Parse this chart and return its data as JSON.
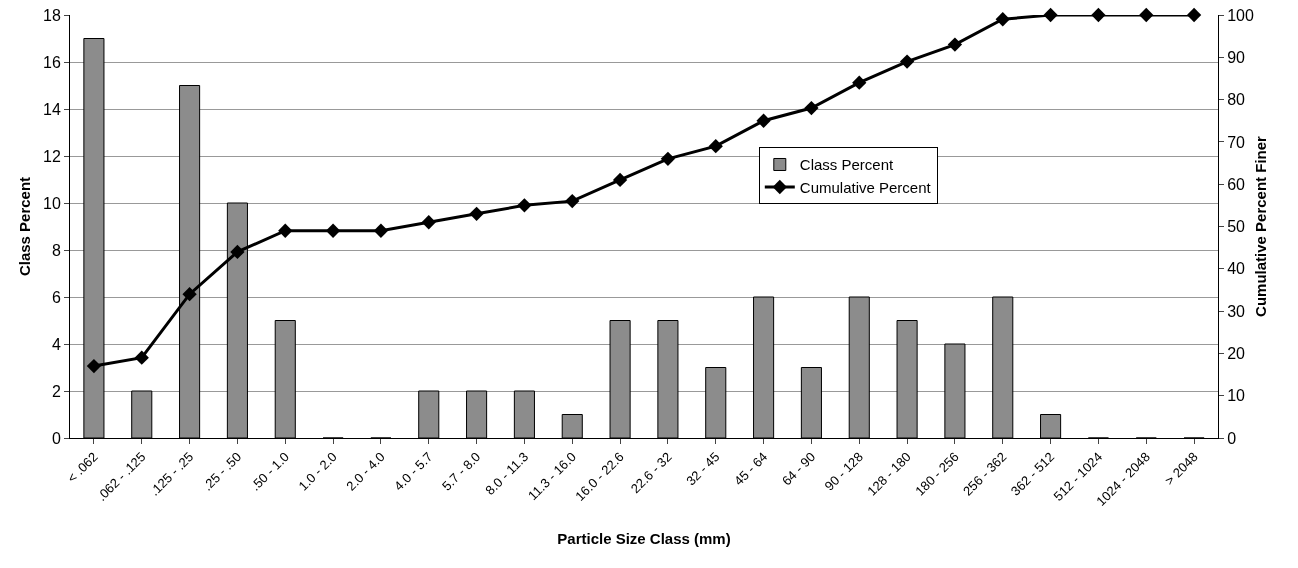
{
  "chart_data": {
    "type": "bar",
    "xlabel": "Particle Size Class (mm)",
    "ylabel": "Class Percent",
    "y2label": "Cumulative Percent Finer",
    "categories": [
      "< .062",
      ".062 - .125",
      ".125 - .25",
      ".25 - .50",
      ".50 - 1.0",
      "1.0 - 2.0",
      "2.0 - 4.0",
      "4.0 - 5.7",
      "5.7 - 8.0",
      "8.0 - 11.3",
      "11.3 - 16.0",
      "16.0 - 22.6",
      "22.6 - 32",
      "32 - 45",
      "45 - 64",
      "64 - 90",
      "90 - 128",
      "128 - 180",
      "180 - 256",
      "256 - 362",
      "362 - 512",
      "512 - 1024",
      "1024 - 2048",
      "> 2048"
    ],
    "series": [
      {
        "name": "Class Percent",
        "color": "#8c8c8c",
        "values": [
          17,
          2,
          15,
          10,
          5,
          0,
          0,
          2,
          2,
          2,
          1,
          5,
          5,
          3,
          6,
          3,
          6,
          5,
          4,
          6,
          1,
          0,
          0,
          0
        ]
      },
      {
        "name": "Cumulative Percent",
        "type": "line",
        "axis": "y2",
        "color": "#000000",
        "marker": "diamond",
        "values": [
          17,
          19,
          34,
          44,
          49,
          49,
          49,
          51,
          53,
          55,
          56,
          61,
          66,
          69,
          75,
          78,
          84,
          89,
          93,
          99,
          100,
          100,
          100,
          100
        ]
      }
    ],
    "ylim": [
      0,
      18
    ],
    "yticks": [
      0,
      2,
      4,
      6,
      8,
      10,
      12,
      14,
      16,
      18
    ],
    "y2lim": [
      0,
      100
    ],
    "y2ticks": [
      0,
      10,
      20,
      30,
      40,
      50,
      60,
      70,
      80,
      90,
      100
    ],
    "grid": "y",
    "legend": "right",
    "line_style": "solid"
  }
}
